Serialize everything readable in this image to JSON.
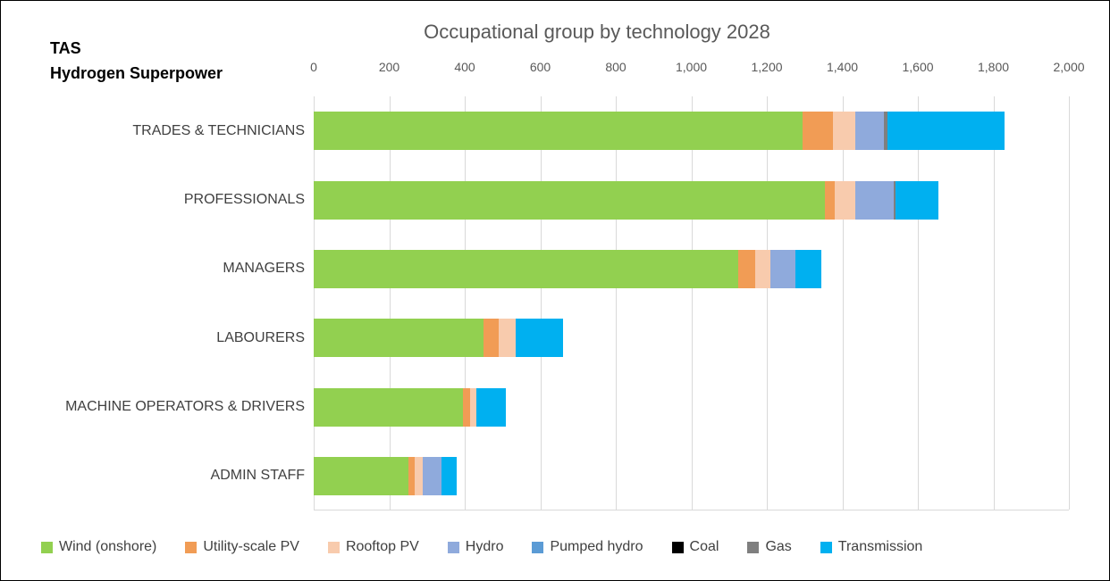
{
  "header": {
    "corner_line1": "TAS",
    "corner_line2": "Hydrogen Superpower"
  },
  "chart_data": {
    "type": "bar",
    "orientation": "horizontal",
    "stacked": true,
    "title": "Occupational group by technology 2028",
    "xlabel": "",
    "ylabel": "",
    "xlim": [
      0,
      2000
    ],
    "x_ticks": [
      0,
      200,
      400,
      600,
      800,
      1000,
      1200,
      1400,
      1600,
      1800,
      2000
    ],
    "x_tick_labels": [
      "0",
      "200",
      "400",
      "600",
      "800",
      "1,000",
      "1,200",
      "1,400",
      "1,600",
      "1,800",
      "2,000"
    ],
    "grid": true,
    "legend_position": "bottom",
    "categories": [
      "TRADES & TECHNICIANS",
      "PROFESSIONALS",
      "MANAGERS",
      "LABOURERS",
      "MACHINE OPERATORS & DRIVERS",
      "ADMIN STAFF"
    ],
    "series": [
      {
        "name": "Wind (onshore)",
        "color": "#92D050",
        "values": [
          1295,
          1355,
          1125,
          450,
          395,
          250
        ]
      },
      {
        "name": "Utility-scale PV",
        "color": "#F19C55",
        "values": [
          80,
          25,
          45,
          40,
          20,
          18
        ]
      },
      {
        "name": "Rooftop PV",
        "color": "#F8CBAD",
        "values": [
          60,
          55,
          40,
          45,
          15,
          20
        ]
      },
      {
        "name": "Hydro",
        "color": "#8FAADC",
        "values": [
          75,
          100,
          65,
          0,
          0,
          50
        ]
      },
      {
        "name": "Pumped hydro",
        "color": "#5B9BD5",
        "values": [
          0,
          0,
          0,
          0,
          0,
          0
        ]
      },
      {
        "name": "Coal",
        "color": "#000000",
        "values": [
          0,
          0,
          0,
          0,
          0,
          0
        ]
      },
      {
        "name": "Gas",
        "color": "#7F7F7F",
        "values": [
          10,
          5,
          0,
          0,
          0,
          0
        ]
      },
      {
        "name": "Transmission",
        "color": "#00B0F0",
        "values": [
          310,
          115,
          70,
          125,
          80,
          40
        ]
      }
    ]
  }
}
